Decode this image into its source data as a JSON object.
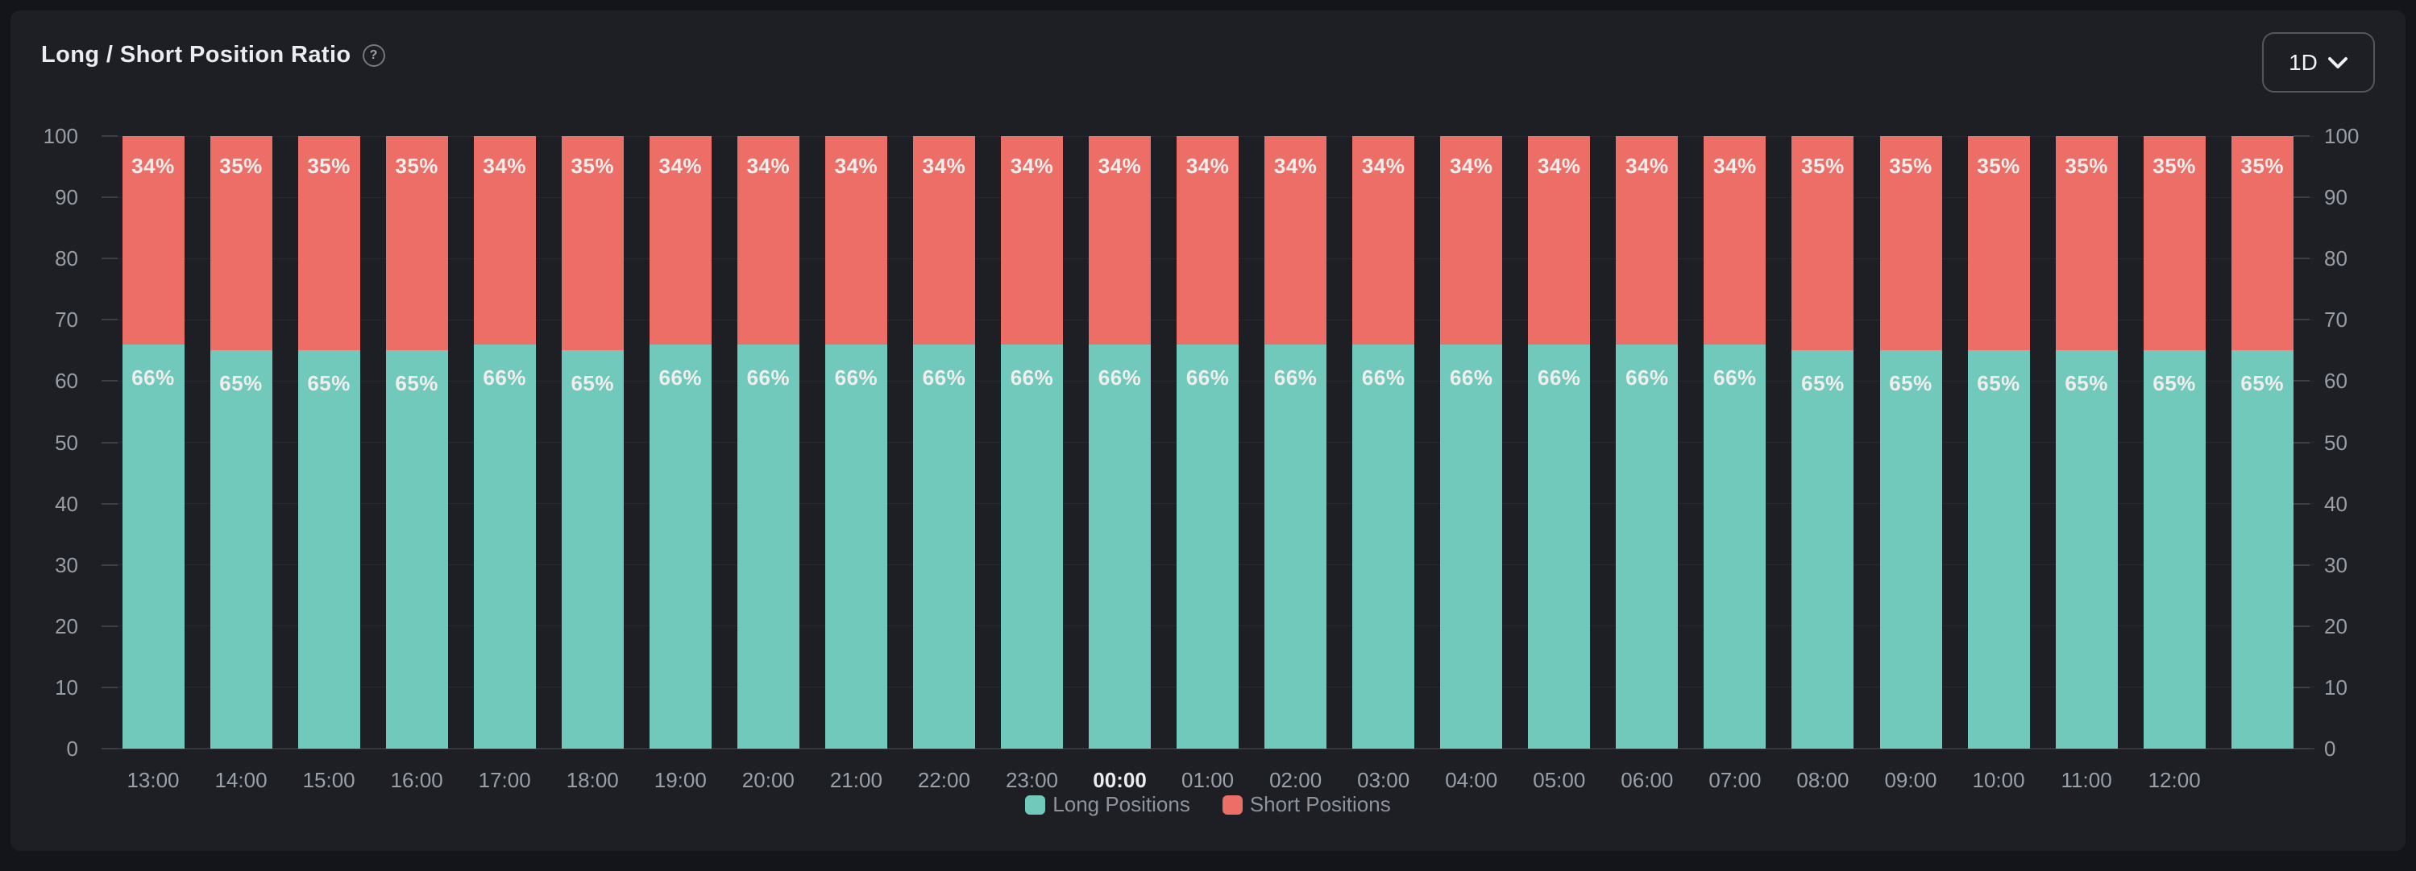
{
  "header": {
    "title": "Long / Short Position Ratio",
    "help_glyph": "?",
    "timeframe": {
      "selected": "1D",
      "chevron_icon": "chevron-down"
    }
  },
  "chart_data": {
    "type": "bar",
    "stacked": true,
    "unit": "%",
    "title": "Long / Short Position Ratio",
    "categories": [
      "13:00",
      "14:00",
      "15:00",
      "16:00",
      "17:00",
      "18:00",
      "19:00",
      "20:00",
      "21:00",
      "22:00",
      "23:00",
      "00:00",
      "01:00",
      "02:00",
      "03:00",
      "04:00",
      "05:00",
      "06:00",
      "07:00",
      "08:00",
      "09:00",
      "10:00",
      "11:00",
      "12:00",
      ""
    ],
    "highlighted_category": "00:00",
    "series": [
      {
        "name": "Long Positions",
        "color": "#71c9bb",
        "values": [
          66,
          65,
          65,
          65,
          66,
          65,
          66,
          66,
          66,
          66,
          66,
          66,
          66,
          66,
          66,
          66,
          66,
          66,
          66,
          65,
          65,
          65,
          65,
          65,
          65
        ]
      },
      {
        "name": "Short Positions",
        "color": "#ed6e66",
        "values": [
          34,
          35,
          35,
          35,
          34,
          35,
          34,
          34,
          34,
          34,
          34,
          34,
          34,
          34,
          34,
          34,
          34,
          34,
          34,
          35,
          35,
          35,
          35,
          35,
          35
        ]
      }
    ],
    "ylim": [
      0,
      100
    ],
    "yticks": [
      0,
      10,
      20,
      30,
      40,
      50,
      60,
      70,
      80,
      90,
      100
    ],
    "y_axis_sides": [
      "left",
      "right"
    ],
    "grid": true,
    "legend_position": "bottom",
    "bar_value_labels": "percent shown inside each segment"
  }
}
